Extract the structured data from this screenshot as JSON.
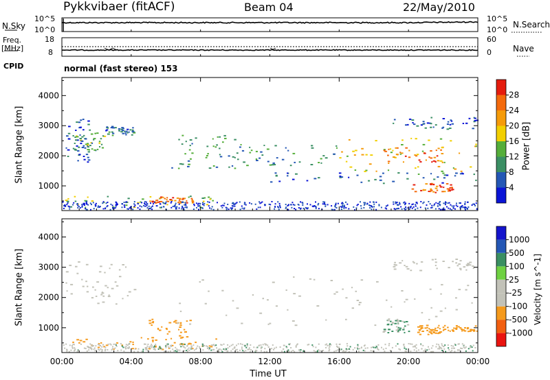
{
  "header": {
    "radar": "Pykkvibaer (fitACF)",
    "beam": "Beam 04",
    "date": "22/May/2010"
  },
  "nsky": {
    "label": "N.Sky",
    "left_ticks": [
      "10^5",
      "10^0"
    ],
    "right_ticks": [
      "10^5",
      "10^0"
    ],
    "right_label": "N.Search"
  },
  "freq": {
    "label_line1": "Freq.",
    "label_line2": "[MHz]",
    "left_ticks": [
      "18",
      "8"
    ],
    "right_ticks": [
      "60",
      "0"
    ],
    "right_label": "Nave"
  },
  "cpid": {
    "label": "CPID",
    "mode": "normal (fast stereo) 153"
  },
  "colors": {
    "power_scale": [
      "#0a14d6",
      "#2457b5",
      "#3b8f64",
      "#55ae3a",
      "#f2cf00",
      "#f59b0a",
      "#f46a0c",
      "#e51c0e"
    ],
    "velocity_scale": [
      "#ea1410",
      "#f25f10",
      "#f59a1c",
      "#c2c2b8",
      "#c2c2b8",
      "#6fd142",
      "#3a8f62",
      "#2457b5",
      "#1414cc"
    ]
  },
  "chart_data": [
    {
      "type": "heatmap",
      "title": "",
      "xlabel": "Time UT",
      "ylabel": "Slant Range [km]",
      "x_ticks": [
        "00:00",
        "04:00",
        "08:00",
        "12:00",
        "16:00",
        "20:00",
        "00:00"
      ],
      "xlim": [
        0,
        24
      ],
      "y_ticks": [
        1000,
        2000,
        3000,
        4000
      ],
      "ylim": [
        180,
        4600
      ],
      "colorbar": {
        "label": "Power [dB]",
        "ticks": [
          "4",
          "8",
          "12",
          "16",
          "20",
          "24",
          "28"
        ],
        "range": [
          0,
          32
        ]
      },
      "scatter_regions": [
        {
          "t": [
            0.2,
            1.6
          ],
          "r": [
            1800,
            3300
          ],
          "power": 6
        },
        {
          "t": [
            0.6,
            2.4
          ],
          "r": [
            2200,
            2800
          ],
          "power": 12
        },
        {
          "t": [
            2.5,
            4.2
          ],
          "r": [
            2700,
            3000
          ],
          "power": 8
        },
        {
          "t": [
            0.0,
            9.0
          ],
          "r": [
            300,
            700
          ],
          "power": 14
        },
        {
          "t": [
            5.0,
            7.5
          ],
          "r": [
            450,
            650
          ],
          "power": 25
        },
        {
          "t": [
            6.3,
            10.0
          ],
          "r": [
            1600,
            2700
          ],
          "power": 11
        },
        {
          "t": [
            10.0,
            16.0
          ],
          "r": [
            1700,
            2400
          ],
          "power": 10
        },
        {
          "t": [
            12.0,
            24.0
          ],
          "r": [
            1100,
            1500
          ],
          "power": 7
        },
        {
          "t": [
            16.0,
            24.0
          ],
          "r": [
            1400,
            2600
          ],
          "power": 18
        },
        {
          "t": [
            18.5,
            22.0
          ],
          "r": [
            1800,
            2300
          ],
          "power": 24
        },
        {
          "t": [
            20.0,
            22.5
          ],
          "r": [
            800,
            1100
          ],
          "power": 27
        },
        {
          "t": [
            19.0,
            24.0
          ],
          "r": [
            2900,
            3300
          ],
          "power": 5
        }
      ]
    },
    {
      "type": "heatmap",
      "title": "",
      "xlabel": "Time UT",
      "ylabel": "Slant Range [km]",
      "x_ticks": [
        "00:00",
        "04:00",
        "08:00",
        "12:00",
        "16:00",
        "20:00",
        "00:00"
      ],
      "xlim": [
        0,
        24
      ],
      "y_ticks": [
        1000,
        2000,
        3000,
        4000
      ],
      "ylim": [
        180,
        4600
      ],
      "colorbar": {
        "label": "Velocity [m s^-1]",
        "ticks": [
          "-1000",
          "-500",
          "-100",
          "-25",
          "25",
          "100",
          "500",
          "1000"
        ],
        "range": [
          -1200,
          1200
        ]
      },
      "scatter_regions": [
        {
          "t": [
            0.2,
            4.2
          ],
          "r": [
            1800,
            3300
          ],
          "velocity": 0
        },
        {
          "t": [
            0.0,
            9.0
          ],
          "r": [
            300,
            700
          ],
          "velocity": -300
        },
        {
          "t": [
            5.0,
            7.5
          ],
          "r": [
            450,
            1300
          ],
          "velocity": -250
        },
        {
          "t": [
            6.3,
            24.0
          ],
          "r": [
            1100,
            2700
          ],
          "velocity": 0
        },
        {
          "t": [
            19.0,
            24.0
          ],
          "r": [
            2900,
            3300
          ],
          "velocity": 0
        },
        {
          "t": [
            18.5,
            20.0
          ],
          "r": [
            850,
            1300
          ],
          "velocity": 120
        },
        {
          "t": [
            20.5,
            22.0
          ],
          "r": [
            800,
            1100
          ],
          "velocity": -200
        },
        {
          "t": [
            22.0,
            24.0
          ],
          "r": [
            900,
            1100
          ],
          "velocity": -400
        }
      ]
    }
  ]
}
